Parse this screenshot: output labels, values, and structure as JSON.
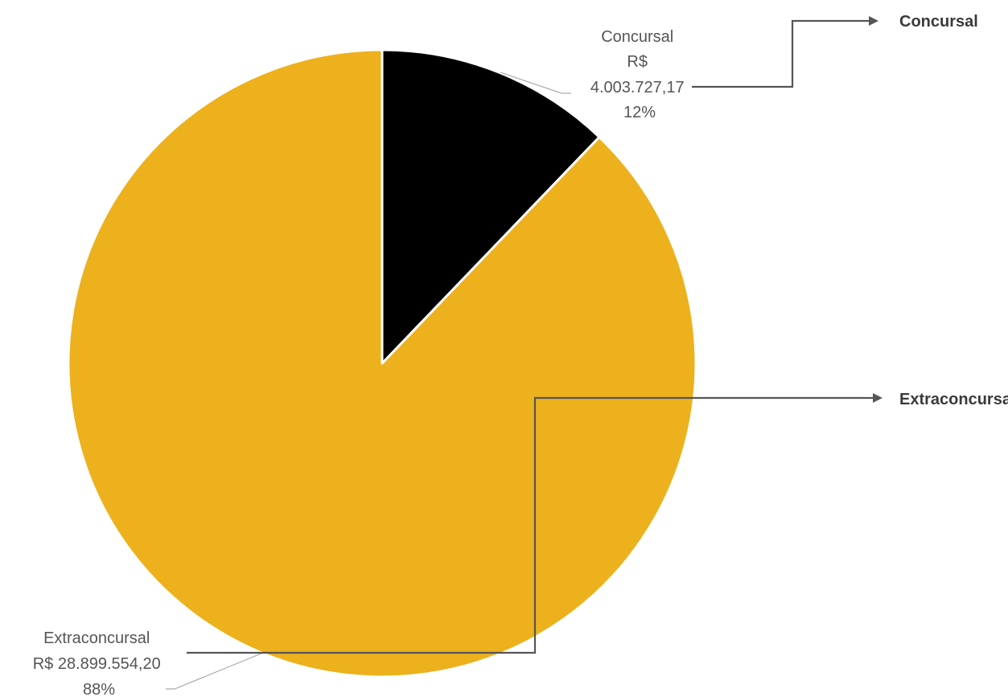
{
  "chart_data": {
    "type": "pie",
    "slices": [
      {
        "name": "Concursal",
        "value": 4003727.17,
        "percent": 12,
        "color": "#000000",
        "label_lines": [
          "Concursal",
          "R$",
          "4.003.727,17",
          "12%"
        ]
      },
      {
        "name": "Extraconcursal",
        "value": 28899554.2,
        "percent": 88,
        "color": "#ECB11D",
        "label_lines": [
          "Extraconcursal",
          "R$ 28.899.554,20",
          "88%"
        ]
      }
    ],
    "legend": {
      "placement": "right",
      "entries": [
        "Concursal",
        "Extraconcursal"
      ]
    }
  }
}
